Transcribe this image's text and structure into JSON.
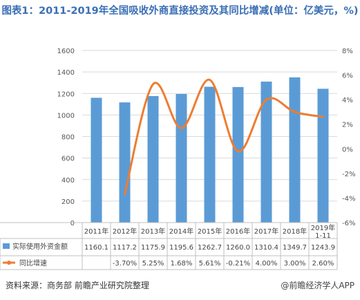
{
  "title": "图表1：2011-2019年全国吸收外商直接投资及其同比增减(单位：亿美元，%)",
  "source": "资料来源：商务部 前瞻产业研究院整理",
  "watermark": "@前瞻经济学人APP",
  "colors": {
    "bar": "#5b9bd5",
    "line": "#ed7d31",
    "grid": "#d9d9d9",
    "title": "#3a6fb5"
  },
  "chart_data": {
    "type": "bar",
    "categories": [
      "2011年",
      "2012年",
      "2013年",
      "2014年",
      "2015年",
      "2016年",
      "2017年",
      "2018年",
      "2019年\n1-11"
    ],
    "series": [
      {
        "name": "实际使用外资金额",
        "type": "bar",
        "axis": "left",
        "values": [
          1160.1,
          1117.2,
          1175.9,
          1195.6,
          1262.7,
          1260.0,
          1310.4,
          1349.7,
          1243.9
        ],
        "labels": [
          "1160.1",
          "1117.2",
          "1175.9",
          "1195.6",
          "1262.7",
          "1260.0",
          "1310.4",
          "1349.7",
          "1243.9"
        ]
      },
      {
        "name": "同比增速",
        "type": "line",
        "axis": "right",
        "values": [
          null,
          -3.7,
          5.25,
          1.68,
          5.61,
          -0.21,
          4.0,
          3.0,
          2.6
        ],
        "labels": [
          "",
          "-3.70%",
          "5.25%",
          "1.68%",
          "5.61%",
          "-0.21%",
          "4.00%",
          "3.00%",
          "2.60%"
        ]
      }
    ],
    "ylim": [
      0,
      1600
    ],
    "y_ticks": [
      0,
      200,
      400,
      600,
      800,
      1000,
      1200,
      1400,
      1600
    ],
    "y2lim": [
      -6,
      8
    ],
    "y2_ticks": [
      "-6%",
      "-4%",
      "-2%",
      "0%",
      "2%",
      "4%",
      "6%",
      "8%"
    ],
    "y2_tick_values": [
      -6,
      -4,
      -2,
      0,
      2,
      4,
      6,
      8
    ],
    "grid": true,
    "legend": "table-below"
  }
}
